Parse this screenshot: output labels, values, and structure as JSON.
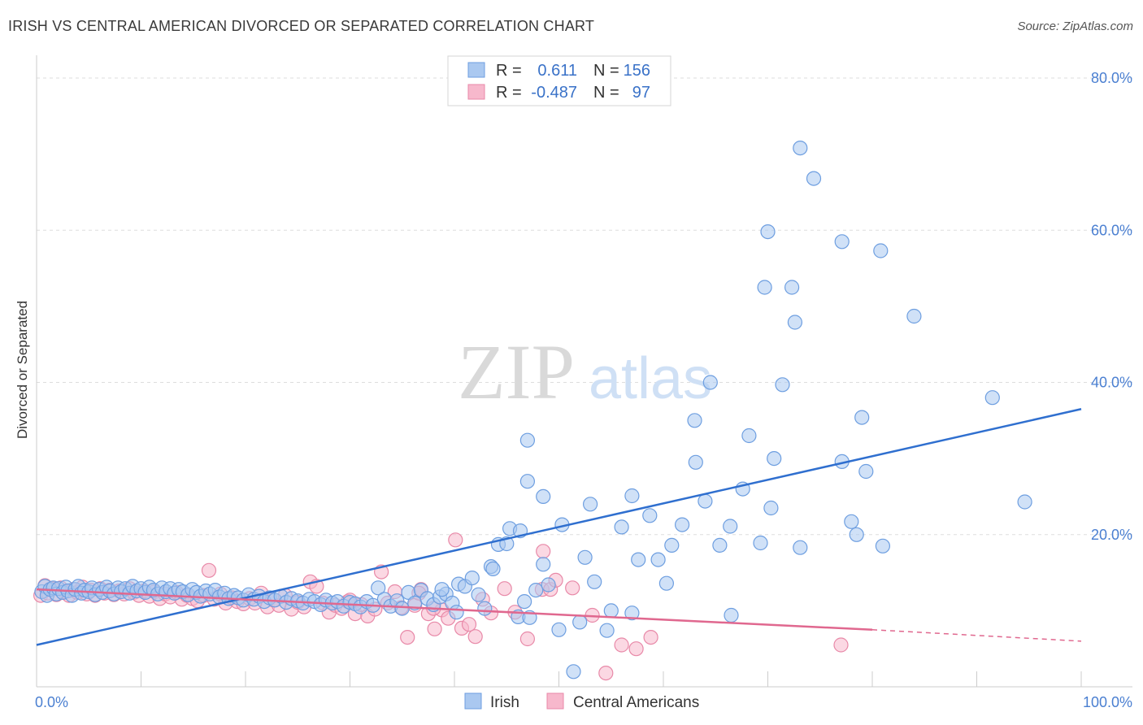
{
  "title": "IRISH VS CENTRAL AMERICAN DIVORCED OR SEPARATED CORRELATION CHART",
  "source": "Source: ZipAtlas.com",
  "watermark": {
    "zip": "ZIP",
    "atlas": "atlas"
  },
  "colors": {
    "irish_fill": "#aac8f0",
    "irish_stroke": "#6d9ee0",
    "irish_line": "#2f6fcf",
    "central_fill": "#f7b8cc",
    "central_stroke": "#e889a8",
    "central_line": "#e0688f",
    "grid": "#dddddd",
    "tick_label": "#4a7fd1"
  },
  "legend": {
    "rows": [
      {
        "r_label": "R =",
        "r_value": "0.611",
        "n_label": "N =",
        "n_value": "156"
      },
      {
        "r_label": "R =",
        "r_value": "-0.487",
        "n_label": "N =",
        "n_value": "97"
      }
    ]
  },
  "chart_data": {
    "type": "scatter",
    "title": "IRISH VS CENTRAL AMERICAN DIVORCED OR SEPARATED CORRELATION CHART",
    "xlabel": "",
    "ylabel": "Divorced or Separated",
    "xlim": [
      0,
      100
    ],
    "ylim": [
      0,
      80
    ],
    "x_tick_labels": [
      "0.0%",
      "100.0%"
    ],
    "y_ticks": [
      20,
      40,
      60,
      80
    ],
    "y_tick_labels": [
      "20.0%",
      "40.0%",
      "60.0%",
      "80.0%"
    ],
    "grid": true,
    "legend_position": "top-center",
    "series": [
      {
        "name": "Irish",
        "r": 0.611,
        "n": 156,
        "trend": [
          [
            0,
            5.5
          ],
          [
            100,
            36.5
          ]
        ],
        "points": [
          [
            0.5,
            12.5
          ],
          [
            0.8,
            13.2
          ],
          [
            1.0,
            12.0
          ],
          [
            1.3,
            12.8
          ],
          [
            1.6,
            13.0
          ],
          [
            1.9,
            12.2
          ],
          [
            2.1,
            12.9
          ],
          [
            2.5,
            12.4
          ],
          [
            2.8,
            13.1
          ],
          [
            3.0,
            12.6
          ],
          [
            3.4,
            12.0
          ],
          [
            3.7,
            12.8
          ],
          [
            4.0,
            13.2
          ],
          [
            4.3,
            12.3
          ],
          [
            4.6,
            12.7
          ],
          [
            5.0,
            12.5
          ],
          [
            5.3,
            13.0
          ],
          [
            5.6,
            12.1
          ],
          [
            6.0,
            12.8
          ],
          [
            6.3,
            12.4
          ],
          [
            6.7,
            13.1
          ],
          [
            7.0,
            12.6
          ],
          [
            7.4,
            12.2
          ],
          [
            7.8,
            13.0
          ],
          [
            8.1,
            12.5
          ],
          [
            8.5,
            12.9
          ],
          [
            8.9,
            12.3
          ],
          [
            9.2,
            13.2
          ],
          [
            9.6,
            12.6
          ],
          [
            10.0,
            12.9
          ],
          [
            10.4,
            12.4
          ],
          [
            10.8,
            13.1
          ],
          [
            11.2,
            12.7
          ],
          [
            11.6,
            12.2
          ],
          [
            12.0,
            13.0
          ],
          [
            12.4,
            12.5
          ],
          [
            12.8,
            12.9
          ],
          [
            13.2,
            12.3
          ],
          [
            13.6,
            12.8
          ],
          [
            14.0,
            12.5
          ],
          [
            14.5,
            12.1
          ],
          [
            14.9,
            12.8
          ],
          [
            15.3,
            12.4
          ],
          [
            15.7,
            11.9
          ],
          [
            16.2,
            12.6
          ],
          [
            16.6,
            12.2
          ],
          [
            17.1,
            12.7
          ],
          [
            17.5,
            11.8
          ],
          [
            18.0,
            12.3
          ],
          [
            18.4,
            11.6
          ],
          [
            18.9,
            12.0
          ],
          [
            19.3,
            11.7
          ],
          [
            19.8,
            11.4
          ],
          [
            20.3,
            12.1
          ],
          [
            20.8,
            11.5
          ],
          [
            21.3,
            11.9
          ],
          [
            21.8,
            11.2
          ],
          [
            22.3,
            11.7
          ],
          [
            22.8,
            11.4
          ],
          [
            23.4,
            11.9
          ],
          [
            23.9,
            11.1
          ],
          [
            24.4,
            11.6
          ],
          [
            25.0,
            11.3
          ],
          [
            25.5,
            11.0
          ],
          [
            26.1,
            11.5
          ],
          [
            26.6,
            11.2
          ],
          [
            27.2,
            10.8
          ],
          [
            27.7,
            11.4
          ],
          [
            28.3,
            11.0
          ],
          [
            28.8,
            11.2
          ],
          [
            29.4,
            10.6
          ],
          [
            30.0,
            11.1
          ],
          [
            30.5,
            10.9
          ],
          [
            31.0,
            10.5
          ],
          [
            31.6,
            11.2
          ],
          [
            32.2,
            10.7
          ],
          [
            32.7,
            13.0
          ],
          [
            33.3,
            11.5
          ],
          [
            33.9,
            10.6
          ],
          [
            34.5,
            11.3
          ],
          [
            35.0,
            10.3
          ],
          [
            35.6,
            12.4
          ],
          [
            36.2,
            11.0
          ],
          [
            36.8,
            12.7
          ],
          [
            37.4,
            11.6
          ],
          [
            38.0,
            10.8
          ],
          [
            38.6,
            11.8
          ],
          [
            39.2,
            12.2
          ],
          [
            39.8,
            11.0
          ],
          [
            40.4,
            13.5
          ],
          [
            41.0,
            13.2
          ],
          [
            41.7,
            14.3
          ],
          [
            42.3,
            12.1
          ],
          [
            42.9,
            10.3
          ],
          [
            43.5,
            15.8
          ],
          [
            44.2,
            18.7
          ],
          [
            45.0,
            18.8
          ],
          [
            45.3,
            20.8
          ],
          [
            46.1,
            9.2
          ],
          [
            46.7,
            11.2
          ],
          [
            47.2,
            9.1
          ],
          [
            47.8,
            12.7
          ],
          [
            48.5,
            16.1
          ],
          [
            49.0,
            13.4
          ],
          [
            50.0,
            7.5
          ],
          [
            50.3,
            21.3
          ],
          [
            52.0,
            8.5
          ],
          [
            52.5,
            17.0
          ],
          [
            53.0,
            24.0
          ],
          [
            53.4,
            13.8
          ],
          [
            54.6,
            7.4
          ],
          [
            56.0,
            21.0
          ],
          [
            57.0,
            9.7
          ],
          [
            57.6,
            16.7
          ],
          [
            58.7,
            22.5
          ],
          [
            59.5,
            16.7
          ],
          [
            60.3,
            13.6
          ],
          [
            60.8,
            18.6
          ],
          [
            61.8,
            21.3
          ],
          [
            63.1,
            29.5
          ],
          [
            64.0,
            24.4
          ],
          [
            65.4,
            18.6
          ],
          [
            66.4,
            21.1
          ],
          [
            67.6,
            26.0
          ],
          [
            69.3,
            18.9
          ],
          [
            70.6,
            30.0
          ],
          [
            71.4,
            39.7
          ],
          [
            70.0,
            59.8
          ],
          [
            69.7,
            52.5
          ],
          [
            72.3,
            52.5
          ],
          [
            72.6,
            47.9
          ],
          [
            73.1,
            70.8
          ],
          [
            74.4,
            66.8
          ],
          [
            77.1,
            58.5
          ],
          [
            80.8,
            57.3
          ],
          [
            84.0,
            48.7
          ],
          [
            77.1,
            29.6
          ],
          [
            78.5,
            20.0
          ],
          [
            79.0,
            35.4
          ],
          [
            79.4,
            28.3
          ],
          [
            78.0,
            21.7
          ],
          [
            81.0,
            18.5
          ],
          [
            91.5,
            38.0
          ],
          [
            94.6,
            24.3
          ],
          [
            64.5,
            40.0
          ],
          [
            63.0,
            35.0
          ],
          [
            66.5,
            9.4
          ],
          [
            48.5,
            25.0
          ],
          [
            47.0,
            32.4
          ],
          [
            46.3,
            20.5
          ],
          [
            38.8,
            12.8
          ],
          [
            40.2,
            9.8
          ],
          [
            43.7,
            15.5
          ],
          [
            47.0,
            27.0
          ],
          [
            68.2,
            33.0
          ],
          [
            73.1,
            18.3
          ],
          [
            70.3,
            23.5
          ],
          [
            55.0,
            10.0
          ],
          [
            57.0,
            25.1
          ],
          [
            51.4,
            2.0
          ]
        ]
      },
      {
        "name": "Central Americans",
        "r": -0.487,
        "n": 97,
        "trend": [
          [
            0,
            12.8
          ],
          [
            80,
            7.5
          ]
        ],
        "trend_dashed": [
          [
            80,
            7.5
          ],
          [
            100,
            6.0
          ]
        ],
        "points": [
          [
            0.4,
            12.0
          ],
          [
            0.8,
            13.3
          ],
          [
            1.1,
            12.3
          ],
          [
            1.5,
            12.9
          ],
          [
            1.9,
            12.1
          ],
          [
            2.3,
            13.0
          ],
          [
            2.7,
            12.5
          ],
          [
            3.1,
            12.0
          ],
          [
            3.5,
            12.8
          ],
          [
            3.9,
            12.4
          ],
          [
            4.4,
            13.1
          ],
          [
            4.8,
            12.2
          ],
          [
            5.2,
            12.7
          ],
          [
            5.6,
            12.0
          ],
          [
            6.1,
            12.9
          ],
          [
            6.5,
            12.3
          ],
          [
            7.0,
            12.7
          ],
          [
            7.4,
            12.1
          ],
          [
            7.9,
            12.6
          ],
          [
            8.4,
            12.2
          ],
          [
            8.9,
            12.9
          ],
          [
            9.3,
            12.4
          ],
          [
            9.8,
            12.0
          ],
          [
            10.3,
            12.6
          ],
          [
            10.8,
            11.9
          ],
          [
            11.3,
            12.5
          ],
          [
            11.8,
            11.6
          ],
          [
            12.3,
            12.2
          ],
          [
            12.8,
            11.8
          ],
          [
            13.4,
            12.4
          ],
          [
            13.9,
            11.5
          ],
          [
            14.4,
            12.0
          ],
          [
            14.9,
            11.6
          ],
          [
            15.4,
            11.3
          ],
          [
            16.0,
            12.0
          ],
          [
            16.5,
            15.3
          ],
          [
            17.0,
            11.5
          ],
          [
            17.6,
            12.2
          ],
          [
            18.1,
            11.0
          ],
          [
            18.7,
            11.7
          ],
          [
            19.2,
            11.2
          ],
          [
            19.8,
            10.9
          ],
          [
            20.4,
            11.6
          ],
          [
            20.9,
            11.0
          ],
          [
            21.5,
            12.3
          ],
          [
            22.1,
            10.5
          ],
          [
            22.7,
            11.4
          ],
          [
            23.2,
            10.7
          ],
          [
            23.8,
            12.0
          ],
          [
            24.4,
            10.2
          ],
          [
            25.0,
            11.1
          ],
          [
            25.6,
            10.5
          ],
          [
            26.2,
            13.8
          ],
          [
            26.8,
            13.2
          ],
          [
            27.4,
            11.0
          ],
          [
            28.0,
            9.8
          ],
          [
            28.6,
            10.7
          ],
          [
            29.2,
            10.3
          ],
          [
            29.8,
            11.2
          ],
          [
            30.5,
            9.6
          ],
          [
            31.1,
            10.8
          ],
          [
            31.7,
            9.3
          ],
          [
            32.4,
            10.2
          ],
          [
            33.0,
            15.1
          ],
          [
            33.6,
            11.0
          ],
          [
            34.3,
            12.5
          ],
          [
            34.9,
            10.4
          ],
          [
            35.5,
            6.5
          ],
          [
            36.2,
            10.7
          ],
          [
            36.8,
            12.8
          ],
          [
            37.5,
            9.6
          ],
          [
            38.1,
            7.6
          ],
          [
            38.8,
            10.1
          ],
          [
            39.4,
            9.0
          ],
          [
            40.1,
            19.3
          ],
          [
            40.7,
            7.7
          ],
          [
            41.4,
            8.2
          ],
          [
            42.0,
            6.6
          ],
          [
            42.7,
            11.5
          ],
          [
            43.5,
            9.7
          ],
          [
            44.8,
            12.9
          ],
          [
            45.8,
            9.8
          ],
          [
            47.0,
            6.3
          ],
          [
            48.4,
            12.8
          ],
          [
            49.2,
            12.8
          ],
          [
            49.7,
            14.0
          ],
          [
            51.3,
            13.0
          ],
          [
            53.2,
            9.4
          ],
          [
            54.5,
            1.8
          ],
          [
            56.0,
            5.5
          ],
          [
            57.4,
            5.0
          ],
          [
            58.8,
            6.5
          ],
          [
            30.0,
            11.4
          ],
          [
            36.6,
            12.3
          ],
          [
            38.0,
            10.3
          ],
          [
            48.5,
            17.8
          ],
          [
            77.0,
            5.5
          ]
        ]
      }
    ]
  },
  "bottom_legend": [
    {
      "label": "Irish"
    },
    {
      "label": "Central Americans"
    }
  ]
}
